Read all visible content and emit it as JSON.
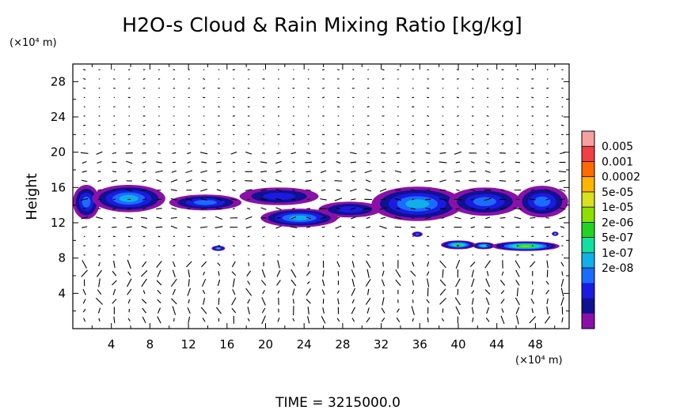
{
  "chart_data": {
    "type": "heatmap",
    "title": "H2O-s Cloud & Rain Mixing Ratio [kg/kg]",
    "ylabel": "Height",
    "x_unit_label": "(×10⁴ m)",
    "y_unit_label": "(×10⁴ m)",
    "xlim": [
      0,
      51.5
    ],
    "ylim": [
      0,
      30
    ],
    "x_ticks": [
      4,
      8,
      12,
      16,
      20,
      24,
      28,
      32,
      36,
      40,
      44,
      48
    ],
    "y_ticks": [
      4,
      8,
      12,
      16,
      20,
      24,
      28
    ],
    "colorbar": {
      "labels": [
        "0.005",
        "0.001",
        "0.0002",
        "5e-05",
        "1e-05",
        "2e-06",
        "5e-07",
        "1e-07",
        "2e-08"
      ],
      "colors": [
        "#f7a0a0",
        "#f04040",
        "#ff6a00",
        "#ffb400",
        "#d8e020",
        "#8ce000",
        "#22d422",
        "#10e0a0",
        "#10b0e8",
        "#1a6cff",
        "#1a1ae0",
        "#101090",
        "#8a10a8"
      ]
    },
    "regions": [
      {
        "x0": 0,
        "x1": 2.8,
        "y0": 12.4,
        "y1": 16.3,
        "level": 3
      },
      {
        "x0": 2.0,
        "x1": 9.6,
        "y0": 13.2,
        "y1": 16.3,
        "level": 4
      },
      {
        "x0": 10.0,
        "x1": 17.5,
        "y0": 13.4,
        "y1": 15.2,
        "level": 3
      },
      {
        "x0": 17.3,
        "x1": 25.5,
        "y0": 14.0,
        "y1": 16.0,
        "level": 2
      },
      {
        "x0": 19.5,
        "x1": 27.5,
        "y0": 11.5,
        "y1": 13.6,
        "level": 4
      },
      {
        "x0": 25.5,
        "x1": 32.0,
        "y0": 12.6,
        "y1": 14.4,
        "level": 2
      },
      {
        "x0": 31.0,
        "x1": 40.5,
        "y0": 12.2,
        "y1": 16.1,
        "level": 4
      },
      {
        "x0": 39.0,
        "x1": 46.5,
        "y0": 12.8,
        "y1": 16.0,
        "level": 3
      },
      {
        "x0": 46.0,
        "x1": 51.4,
        "y0": 12.6,
        "y1": 16.2,
        "level": 3
      },
      {
        "x0": 14.4,
        "x1": 15.8,
        "y0": 8.8,
        "y1": 9.4,
        "level": 4
      },
      {
        "x0": 35.2,
        "x1": 36.3,
        "y0": 10.4,
        "y1": 11.0,
        "level": 3
      },
      {
        "x0": 38.2,
        "x1": 41.8,
        "y0": 9.0,
        "y1": 10.0,
        "level": 6
      },
      {
        "x0": 41.5,
        "x1": 43.8,
        "y0": 9.0,
        "y1": 9.8,
        "level": 5
      },
      {
        "x0": 43.5,
        "x1": 50.5,
        "y0": 8.8,
        "y1": 9.9,
        "level": 7
      },
      {
        "x0": 49.7,
        "x1": 50.4,
        "y0": 10.5,
        "y1": 11.0,
        "level": 4
      }
    ],
    "bottom_label": "TIME = 3215000.0"
  }
}
